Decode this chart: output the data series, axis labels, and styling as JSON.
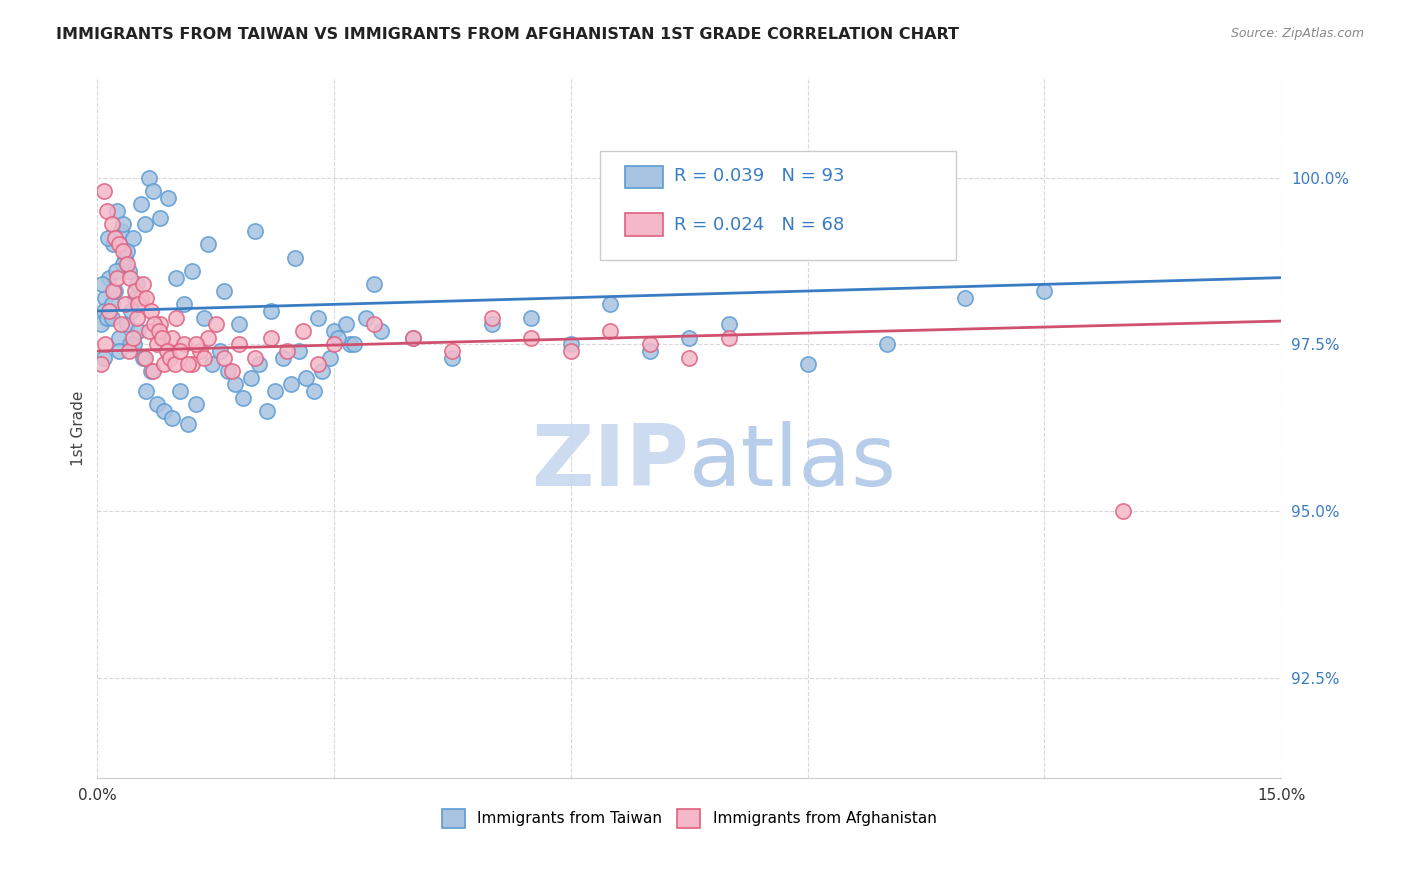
{
  "title": "IMMIGRANTS FROM TAIWAN VS IMMIGRANTS FROM AFGHANISTAN 1ST GRADE CORRELATION CHART",
  "source": "Source: ZipAtlas.com",
  "ylabel": "1st Grade",
  "yticks": [
    92.5,
    95.0,
    97.5,
    100.0
  ],
  "ytick_labels": [
    "92.5%",
    "95.0%",
    "97.5%",
    "100.0%"
  ],
  "xlim": [
    0.0,
    15.0
  ],
  "ylim": [
    91.0,
    101.5
  ],
  "taiwan_color": "#a8c4e0",
  "taiwan_edge": "#5b9bd5",
  "afghanistan_color": "#f4b8c8",
  "afghanistan_edge": "#e06080",
  "taiwan_line_color": "#3a7cc4",
  "afghanistan_line_color": "#d05070",
  "watermark_zip_color": "#c8d8f0",
  "watermark_atlas_color": "#b0c8e8",
  "taiwan_scatter_x": [
    0.1,
    0.15,
    0.2,
    0.25,
    0.3,
    0.35,
    0.4,
    0.45,
    0.5,
    0.6,
    0.05,
    0.08,
    0.12,
    0.18,
    0.22,
    0.28,
    0.32,
    0.38,
    0.42,
    0.48,
    0.55,
    0.65,
    0.7,
    0.8,
    0.9,
    1.0,
    1.1,
    1.2,
    1.4,
    1.6,
    1.8,
    2.0,
    2.2,
    2.5,
    2.8,
    3.0,
    3.2,
    3.5,
    4.0,
    4.5,
    5.0,
    5.5,
    6.0,
    6.5,
    7.0,
    7.5,
    8.0,
    9.0,
    10.0,
    11.0,
    0.06,
    0.09,
    0.14,
    0.19,
    0.23,
    0.27,
    0.33,
    0.37,
    0.43,
    0.47,
    0.52,
    0.58,
    0.62,
    0.68,
    0.75,
    0.85,
    0.95,
    1.05,
    1.15,
    1.25,
    1.35,
    1.45,
    1.55,
    1.65,
    1.75,
    1.85,
    1.95,
    2.05,
    2.15,
    2.25,
    2.35,
    2.45,
    2.55,
    2.65,
    2.75,
    2.85,
    2.95,
    3.05,
    3.15,
    3.25,
    3.4,
    3.6,
    12.0
  ],
  "taiwan_scatter_y": [
    98.2,
    98.5,
    99.0,
    99.5,
    99.2,
    98.8,
    98.6,
    99.1,
    98.4,
    99.3,
    97.8,
    98.0,
    97.9,
    98.1,
    98.3,
    97.6,
    98.7,
    98.9,
    97.5,
    98.2,
    99.6,
    100.0,
    99.8,
    99.4,
    99.7,
    98.5,
    98.1,
    98.6,
    99.0,
    98.3,
    97.8,
    99.2,
    98.0,
    98.8,
    97.9,
    97.7,
    97.5,
    98.4,
    97.6,
    97.3,
    97.8,
    97.9,
    97.5,
    98.1,
    97.4,
    97.6,
    97.8,
    97.2,
    97.5,
    98.2,
    98.4,
    97.3,
    99.1,
    97.9,
    98.6,
    97.4,
    99.3,
    97.8,
    98.0,
    97.5,
    97.7,
    97.3,
    96.8,
    97.1,
    96.6,
    96.5,
    96.4,
    96.8,
    96.3,
    96.6,
    97.9,
    97.2,
    97.4,
    97.1,
    96.9,
    96.7,
    97.0,
    97.2,
    96.5,
    96.8,
    97.3,
    96.9,
    97.4,
    97.0,
    96.8,
    97.1,
    97.3,
    97.6,
    97.8,
    97.5,
    97.9,
    97.7,
    98.3
  ],
  "afghanistan_scatter_x": [
    0.05,
    0.1,
    0.15,
    0.2,
    0.25,
    0.3,
    0.35,
    0.4,
    0.45,
    0.5,
    0.55,
    0.6,
    0.65,
    0.7,
    0.75,
    0.8,
    0.85,
    0.9,
    0.95,
    1.0,
    1.1,
    1.2,
    1.3,
    1.4,
    1.5,
    1.6,
    1.7,
    1.8,
    2.0,
    2.2,
    2.4,
    2.6,
    2.8,
    3.0,
    3.5,
    4.0,
    4.5,
    5.0,
    5.5,
    6.0,
    6.5,
    7.0,
    7.5,
    8.0,
    0.08,
    0.12,
    0.18,
    0.22,
    0.28,
    0.32,
    0.38,
    0.42,
    0.48,
    0.52,
    0.58,
    0.62,
    0.68,
    0.72,
    0.78,
    0.82,
    0.88,
    0.92,
    0.98,
    1.05,
    1.15,
    1.25,
    1.35,
    13.0
  ],
  "afghanistan_scatter_y": [
    97.2,
    97.5,
    98.0,
    98.3,
    98.5,
    97.8,
    98.1,
    97.4,
    97.6,
    97.9,
    98.2,
    97.3,
    97.7,
    97.1,
    97.5,
    97.8,
    97.2,
    97.4,
    97.6,
    97.9,
    97.5,
    97.2,
    97.4,
    97.6,
    97.8,
    97.3,
    97.1,
    97.5,
    97.3,
    97.6,
    97.4,
    97.7,
    97.2,
    97.5,
    97.8,
    97.6,
    97.4,
    97.9,
    97.6,
    97.4,
    97.7,
    97.5,
    97.3,
    97.6,
    99.8,
    99.5,
    99.3,
    99.1,
    99.0,
    98.9,
    98.7,
    98.5,
    98.3,
    98.1,
    98.4,
    98.2,
    98.0,
    97.8,
    97.7,
    97.6,
    97.4,
    97.3,
    97.2,
    97.4,
    97.2,
    97.5,
    97.3,
    95.0
  ],
  "taiwan_trend_x": [
    0.0,
    15.0
  ],
  "taiwan_trend_y": [
    98.0,
    98.5
  ],
  "afghanistan_trend_x": [
    0.0,
    15.0
  ],
  "afghanistan_trend_y": [
    97.4,
    97.85
  ],
  "legend_taiwan_text": "R = 0.039   N = 93",
  "legend_afghanistan_text": "R = 0.024   N = 68",
  "bottom_legend_taiwan": "Immigrants from Taiwan",
  "bottom_legend_afghanistan": "Immigrants from Afghanistan"
}
